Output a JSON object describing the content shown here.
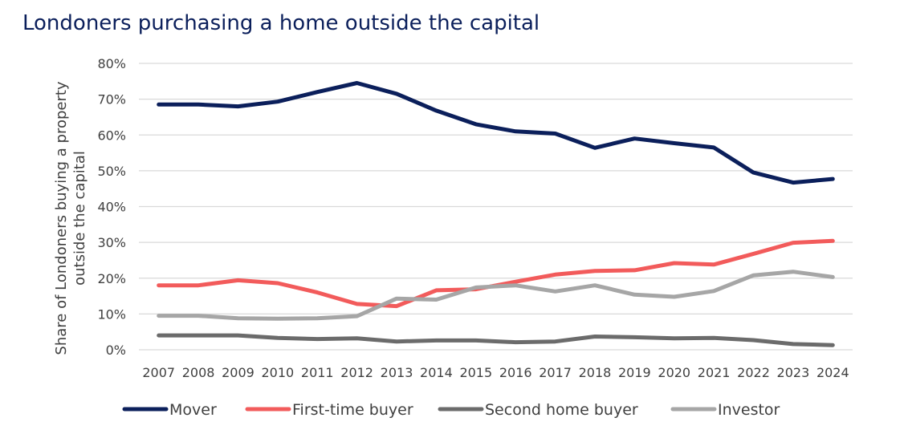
{
  "chart_data": {
    "type": "line",
    "title": "Londoners purchasing a home outside the capital",
    "ylabel_line1": "Share of Londoners buying a property",
    "ylabel_line2": "outside the capital",
    "xlabel": "",
    "ylim": [
      0,
      80
    ],
    "y_ticks": [
      "0%",
      "10%",
      "20%",
      "30%",
      "40%",
      "50%",
      "60%",
      "70%",
      "80%"
    ],
    "grid": true,
    "legend_position": "bottom",
    "categories": [
      "2007",
      "2008",
      "2009",
      "2010",
      "2011",
      "2012",
      "2013",
      "2014",
      "2015",
      "2016",
      "2017",
      "2018",
      "2019",
      "2020",
      "2021",
      "2022",
      "2023",
      "2024"
    ],
    "series": [
      {
        "name": "Mover",
        "color": "#0b1f5b",
        "values": [
          68.5,
          68.5,
          68.0,
          69.3,
          72.0,
          74.5,
          71.5,
          66.8,
          63.0,
          61.0,
          60.4,
          56.4,
          59.0,
          57.7,
          56.5,
          49.5,
          46.7,
          47.7
        ]
      },
      {
        "name": "First-time buyer",
        "color": "#f25b5b",
        "values": [
          18.0,
          18.0,
          19.4,
          18.6,
          16.0,
          12.8,
          12.2,
          16.6,
          16.9,
          19.0,
          21.0,
          22.0,
          22.2,
          24.2,
          23.8,
          26.8,
          29.9,
          30.4
        ]
      },
      {
        "name": "Second home buyer",
        "color": "#6b6b6b",
        "values": [
          4.0,
          4.0,
          4.0,
          3.3,
          3.0,
          3.2,
          2.3,
          2.6,
          2.6,
          2.1,
          2.3,
          3.7,
          3.5,
          3.2,
          3.3,
          2.7,
          1.6,
          1.3
        ]
      },
      {
        "name": "Investor",
        "color": "#a6a6a6",
        "values": [
          9.5,
          9.5,
          8.8,
          8.7,
          8.8,
          9.4,
          14.3,
          14.0,
          17.4,
          18.0,
          16.3,
          18.0,
          15.4,
          14.8,
          16.4,
          20.8,
          21.8,
          20.3
        ]
      }
    ]
  },
  "colors": {
    "title": "#0b1f5b",
    "grid": "#d9d9d9",
    "text": "#404040"
  }
}
